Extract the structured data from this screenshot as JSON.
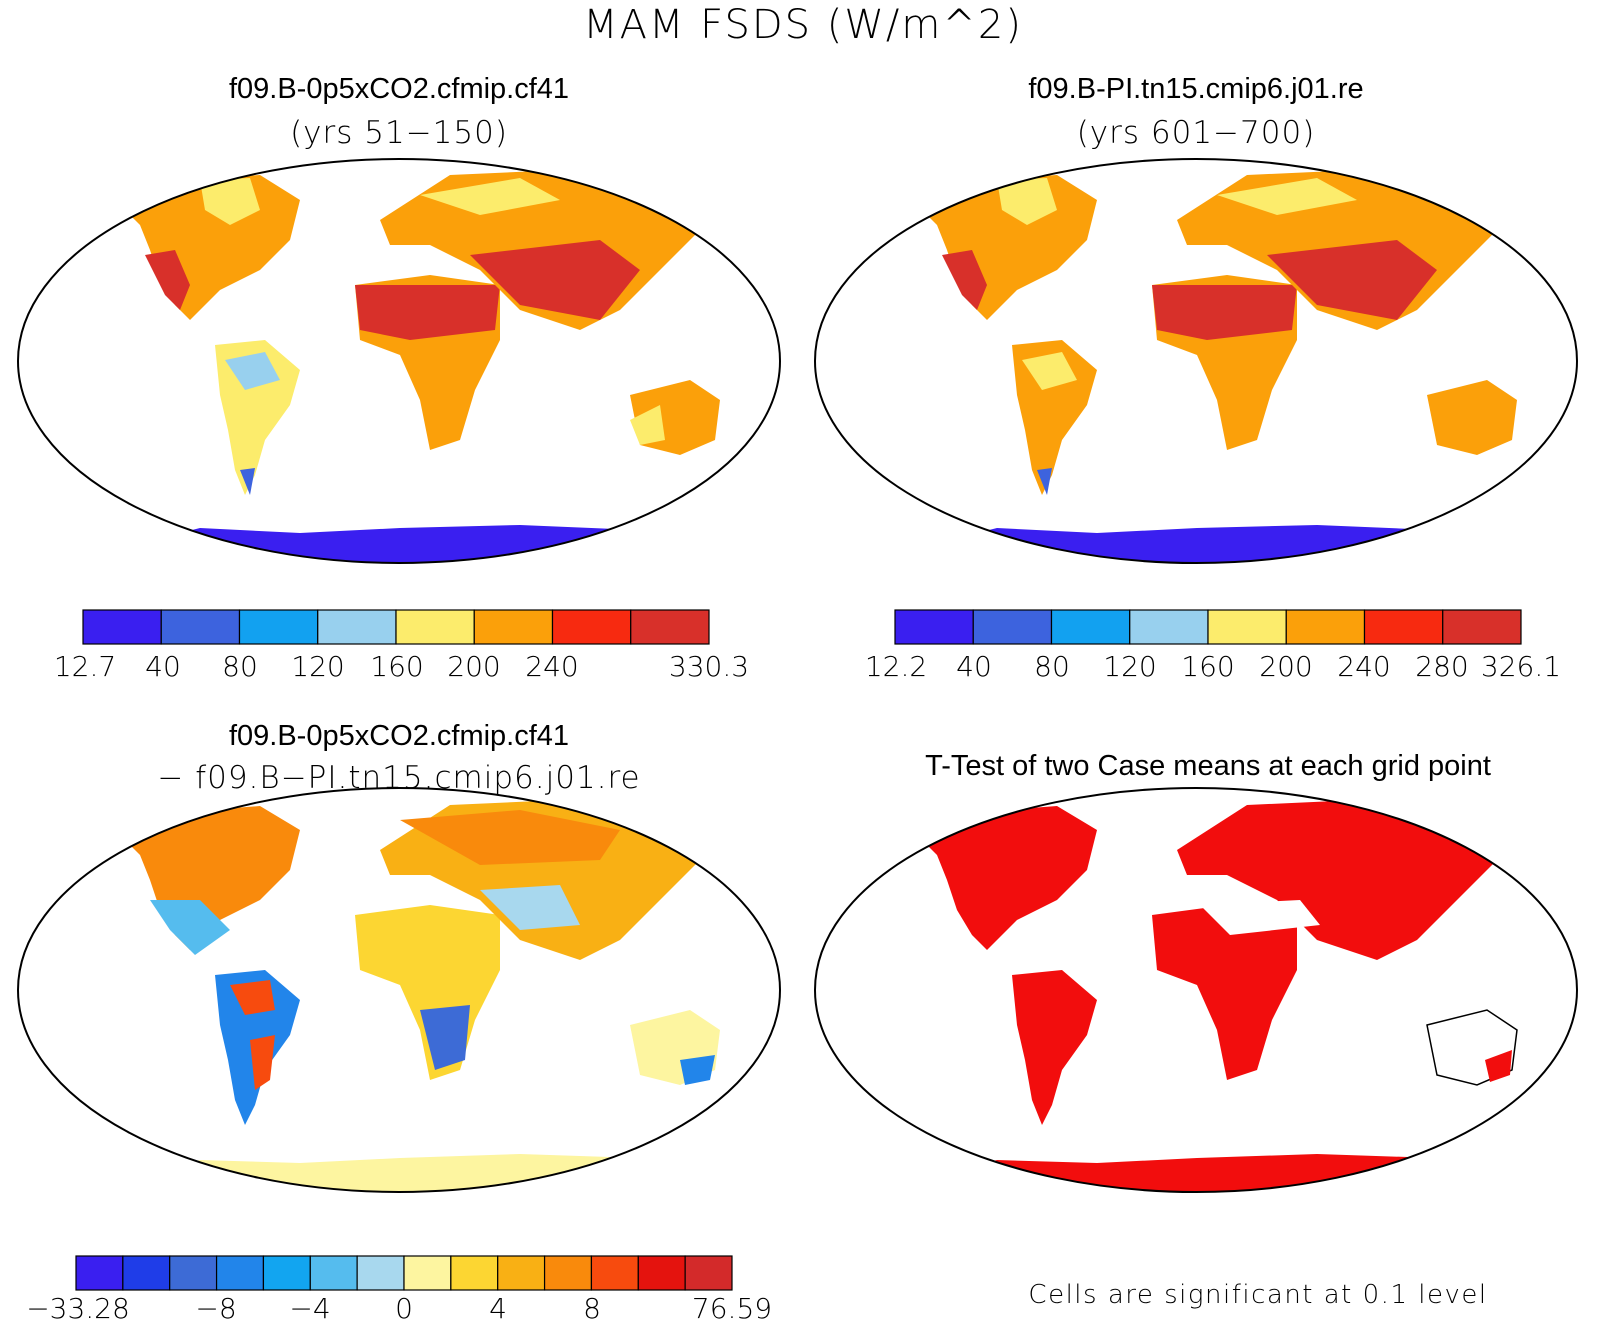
{
  "figure": {
    "title": "MAM FSDS (W/m^2)"
  },
  "panels": [
    {
      "title": "f09.B-0p5xCO2.cfmip.cf41",
      "subtitle": "(yrs 51−150)",
      "colorbar": {
        "colors": [
          "#3a1ff0",
          "#3d63de",
          "#12a1f0",
          "#98d0ee",
          "#fcec6c",
          "#fba00a",
          "#f72a10",
          "#d8302a"
        ],
        "labels": [
          "12.7",
          "40",
          "80",
          "120",
          "160",
          "200",
          "240",
          "330.3"
        ]
      }
    },
    {
      "title": "f09.B-PI.tn15.cmip6.j01.re",
      "subtitle": "(yrs 601−700)",
      "colorbar": {
        "colors": [
          "#3a1ff0",
          "#3d63de",
          "#12a1f0",
          "#98d0ee",
          "#fcec6c",
          "#fba00a",
          "#f72a10",
          "#d8302a"
        ],
        "labels": [
          "12.2",
          "40",
          "80",
          "120",
          "160",
          "200",
          "240",
          "280",
          "326.1"
        ]
      }
    },
    {
      "title": "f09.B-0p5xCO2.cfmip.cf41",
      "subtitle": "− f09.B−PI.tn15.cmip6.j01.re",
      "colorbar": {
        "colors": [
          "#3a1ff0",
          "#1f3de8",
          "#3d6bd6",
          "#2285ea",
          "#12a5f0",
          "#55bcee",
          "#a8d8ee",
          "#fdf5a0",
          "#fcd632",
          "#f9b014",
          "#f98a0c",
          "#f74b0e",
          "#e4130e",
          "#d32a2a"
        ],
        "labels": [
          "−33.28",
          "−8",
          "−4",
          "0",
          "4",
          "8",
          "76.59"
        ]
      }
    },
    {
      "title": "T-Test of two Case means at each grid point",
      "note": "Cells are significant at 0.1 level"
    }
  ]
}
